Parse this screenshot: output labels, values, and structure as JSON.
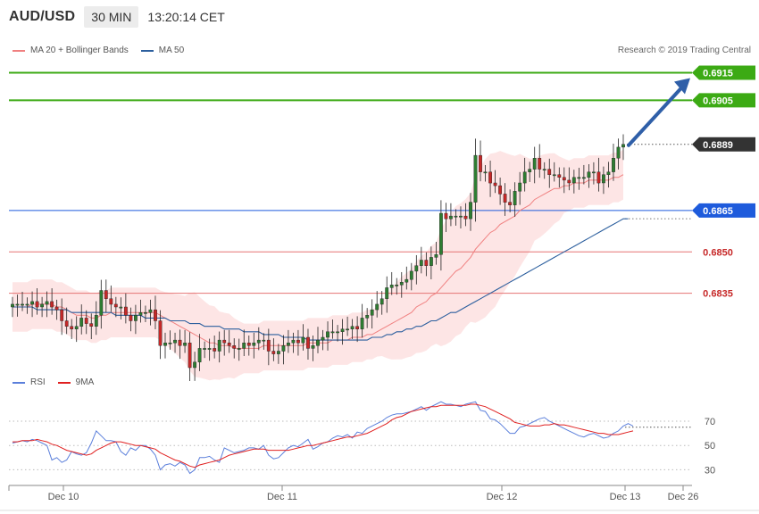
{
  "header": {
    "symbol": "AUD/USD",
    "timeframe": "30 MIN",
    "time": "13:20:14 CET"
  },
  "legend": {
    "ma20_label": "MA 20 + Bollinger Bands",
    "ma50_label": "MA 50",
    "ma20_color": "#f08080",
    "ma50_color": "#2c5f9e",
    "copyright": "Research © 2019 Trading Central"
  },
  "rsi_legend": {
    "rsi_label": "RSI",
    "ma_label": "9MA",
    "rsi_color": "#5b7fdb",
    "ma_color": "#e02020"
  },
  "colors": {
    "up": "#2e7d32",
    "down": "#c62828",
    "target": "#3caa14",
    "pivot": "#1e5bdc",
    "support": "#e57373",
    "last": "#333333",
    "arrow": "#2f5fa8",
    "band": "#fde0e0"
  },
  "chart_data": {
    "type": "candlestick",
    "timeframe": "30 MIN",
    "x_labels": [
      "Dec 10",
      "Dec 11",
      "Dec 12",
      "Dec 13",
      "Dec 26"
    ],
    "ylim": [
      0.6808,
      0.692
    ],
    "levels": [
      {
        "value": 0.6915,
        "label": "0.6915",
        "kind": "target"
      },
      {
        "value": 0.6905,
        "label": "0.6905",
        "kind": "target"
      },
      {
        "value": 0.6889,
        "label": "0.6889",
        "kind": "last"
      },
      {
        "value": 0.6865,
        "label": "0.6865",
        "kind": "pivot"
      },
      {
        "value": 0.685,
        "label": "0.6850",
        "kind": "support"
      },
      {
        "value": 0.6835,
        "label": "0.6835",
        "kind": "support"
      }
    ],
    "last_price": 0.6889,
    "close": [
      0.6831,
      0.6831,
      0.6831,
      0.6831,
      0.6832,
      0.683,
      0.6831,
      0.6832,
      0.683,
      0.6829,
      0.6825,
      0.6823,
      0.6822,
      0.6823,
      0.6826,
      0.6824,
      0.6823,
      0.6827,
      0.6836,
      0.6833,
      0.6831,
      0.683,
      0.683,
      0.6827,
      0.6825,
      0.6827,
      0.6828,
      0.6828,
      0.6829,
      0.6825,
      0.6816,
      0.6817,
      0.6817,
      0.6818,
      0.6816,
      0.6817,
      0.6808,
      0.681,
      0.6815,
      0.6815,
      0.6815,
      0.6814,
      0.6818,
      0.6817,
      0.6816,
      0.6815,
      0.6815,
      0.6817,
      0.6816,
      0.6817,
      0.6818,
      0.6818,
      0.6814,
      0.6813,
      0.6814,
      0.6816,
      0.6817,
      0.6818,
      0.6817,
      0.6819,
      0.6815,
      0.6816,
      0.6818,
      0.6819,
      0.6821,
      0.6821,
      0.6821,
      0.6822,
      0.6822,
      0.6823,
      0.6822,
      0.6826,
      0.6827,
      0.6829,
      0.6831,
      0.6833,
      0.6837,
      0.6838,
      0.6838,
      0.6839,
      0.684,
      0.6843,
      0.6845,
      0.6847,
      0.6845,
      0.6848,
      0.6849,
      0.6864,
      0.6862,
      0.6863,
      0.6863,
      0.6863,
      0.6862,
      0.6868,
      0.6885,
      0.6879,
      0.6879,
      0.6875,
      0.6874,
      0.6871,
      0.6868,
      0.6867,
      0.6872,
      0.6875,
      0.6879,
      0.688,
      0.6884,
      0.688,
      0.688,
      0.6878,
      0.6878,
      0.6877,
      0.6876,
      0.6875,
      0.6877,
      0.6877,
      0.6877,
      0.6879,
      0.6879,
      0.6875,
      0.6878,
      0.6879,
      0.6884,
      0.6888,
      0.6889
    ],
    "series": [
      {
        "name": "MA 20",
        "values": [
          0.683,
          0.683,
          0.683,
          0.683,
          0.6831,
          0.6831,
          0.6831,
          0.6831,
          0.6831,
          0.683,
          0.683,
          0.6829,
          0.6828,
          0.6827,
          0.6827,
          0.6827,
          0.6826,
          0.6826,
          0.6827,
          0.6827,
          0.6828,
          0.6828,
          0.6828,
          0.6828,
          0.6828,
          0.6828,
          0.6828,
          0.6828,
          0.6828,
          0.6828,
          0.6827,
          0.6826,
          0.6825,
          0.6824,
          0.6823,
          0.6822,
          0.6821,
          0.682,
          0.6819,
          0.6818,
          0.6817,
          0.6817,
          0.6816,
          0.6816,
          0.6816,
          0.6815,
          0.6815,
          0.6815,
          0.6815,
          0.6815,
          0.6815,
          0.6816,
          0.6816,
          0.6816,
          0.6816,
          0.6816,
          0.6816,
          0.6816,
          0.6816,
          0.6816,
          0.6817,
          0.6817,
          0.6817,
          0.6817,
          0.6817,
          0.6818,
          0.6818,
          0.6818,
          0.6818,
          0.6819,
          0.6819,
          0.6819,
          0.682,
          0.682,
          0.6821,
          0.6822,
          0.6823,
          0.6824,
          0.6825,
          0.6826,
          0.6827,
          0.6828,
          0.683,
          0.6831,
          0.6832,
          0.6834,
          0.6835,
          0.6837,
          0.6839,
          0.6841,
          0.6843,
          0.6844,
          0.6846,
          0.6848,
          0.6851,
          0.6853,
          0.6855,
          0.6857,
          0.6858,
          0.686,
          0.6861,
          0.6862,
          0.6863,
          0.6865,
          0.6866,
          0.6867,
          0.6869,
          0.687,
          0.6871,
          0.6872,
          0.6873,
          0.6873,
          0.6874,
          0.6874,
          0.6875,
          0.6875,
          0.6875,
          0.6876,
          0.6876,
          0.6876,
          0.6876,
          0.6876,
          0.6877,
          0.6877,
          0.6878
        ]
      },
      {
        "name": "MA 50",
        "values": [
          0.683,
          0.683,
          0.683,
          0.683,
          0.683,
          0.6829,
          0.6829,
          0.6829,
          0.6829,
          0.6829,
          0.6829,
          0.6829,
          0.6828,
          0.6828,
          0.6828,
          0.6828,
          0.6828,
          0.6828,
          0.6828,
          0.6828,
          0.6828,
          0.6827,
          0.6827,
          0.6827,
          0.6827,
          0.6827,
          0.6827,
          0.6826,
          0.6826,
          0.6826,
          0.6826,
          0.6826,
          0.6825,
          0.6825,
          0.6825,
          0.6825,
          0.6824,
          0.6824,
          0.6824,
          0.6823,
          0.6823,
          0.6823,
          0.6823,
          0.6822,
          0.6822,
          0.6822,
          0.6822,
          0.6821,
          0.6821,
          0.6821,
          0.6821,
          0.682,
          0.682,
          0.682,
          0.682,
          0.6819,
          0.6819,
          0.6819,
          0.6819,
          0.6819,
          0.6818,
          0.6818,
          0.6818,
          0.6818,
          0.6818,
          0.6818,
          0.6818,
          0.6818,
          0.6818,
          0.6818,
          0.6818,
          0.6818,
          0.6818,
          0.6819,
          0.6819,
          0.6819,
          0.682,
          0.682,
          0.6821,
          0.6821,
          0.6822,
          0.6822,
          0.6823,
          0.6823,
          0.6824,
          0.6825,
          0.6825,
          0.6826,
          0.6827,
          0.6828,
          0.6828,
          0.6829,
          0.683,
          0.6831,
          0.6832,
          0.6833,
          0.6834,
          0.6835,
          0.6836,
          0.6837,
          0.6838,
          0.6839,
          0.684,
          0.6841,
          0.6842,
          0.6843,
          0.6844,
          0.6845,
          0.6846,
          0.6847,
          0.6848,
          0.6849,
          0.685,
          0.6851,
          0.6852,
          0.6853,
          0.6854,
          0.6855,
          0.6856,
          0.6857,
          0.6858,
          0.6859,
          0.686,
          0.6861,
          0.6862,
          0.6862
        ]
      },
      {
        "name": "RSI",
        "values": [
          52,
          53,
          54,
          53,
          55,
          54,
          52,
          50,
          38,
          40,
          36,
          38,
          45,
          43,
          42,
          44,
          52,
          62,
          58,
          54,
          54,
          53,
          45,
          42,
          48,
          46,
          50,
          50,
          47,
          42,
          30,
          34,
          35,
          33,
          36,
          34,
          27,
          30,
          40,
          40,
          41,
          38,
          36,
          48,
          46,
          44,
          45,
          46,
          48,
          48,
          47,
          50,
          42,
          39,
          40,
          44,
          48,
          50,
          49,
          52,
          55,
          47,
          49,
          52,
          53,
          56,
          58,
          57,
          59,
          56,
          61,
          60,
          64,
          66,
          68,
          70,
          73,
          75,
          76,
          76,
          77,
          78,
          80,
          82,
          79,
          82,
          84,
          86,
          84,
          84,
          83,
          82,
          84,
          85,
          86,
          79,
          78,
          72,
          71,
          68,
          64,
          60,
          60,
          65,
          66,
          68,
          70,
          72,
          73,
          70,
          68,
          66,
          64,
          62,
          60,
          58,
          57,
          59,
          60,
          58,
          56,
          57,
          60,
          62,
          66,
          68,
          66
        ]
      },
      {
        "name": "9MA",
        "values": [
          53,
          53,
          54,
          54,
          54,
          55,
          54,
          53,
          51,
          50,
          48,
          46,
          45,
          44,
          43,
          42,
          43,
          46,
          48,
          50,
          52,
          53,
          53,
          52,
          51,
          50,
          50,
          49,
          48,
          47,
          44,
          42,
          40,
          38,
          37,
          35,
          33,
          32,
          34,
          35,
          36,
          37,
          38,
          40,
          42,
          43,
          44,
          45,
          46,
          47,
          47,
          47,
          46,
          46,
          46,
          46,
          46,
          47,
          48,
          49,
          50,
          50,
          51,
          52,
          53,
          54,
          55,
          56,
          57,
          57,
          58,
          59,
          60,
          62,
          64,
          66,
          68,
          71,
          73,
          74,
          76,
          78,
          79,
          80,
          81,
          82,
          82,
          83,
          83,
          83,
          83,
          83,
          83,
          84,
          84,
          83,
          82,
          80,
          78,
          76,
          74,
          72,
          69,
          68,
          67,
          66,
          66,
          66,
          67,
          67,
          68,
          67,
          67,
          66,
          65,
          64,
          63,
          62,
          61,
          60,
          60,
          59,
          59,
          59,
          60,
          61,
          62
        ]
      }
    ],
    "rsi_ylim": [
      20,
      95
    ],
    "rsi_ticks": [
      30,
      50,
      70
    ],
    "rsi_ref": 65
  }
}
